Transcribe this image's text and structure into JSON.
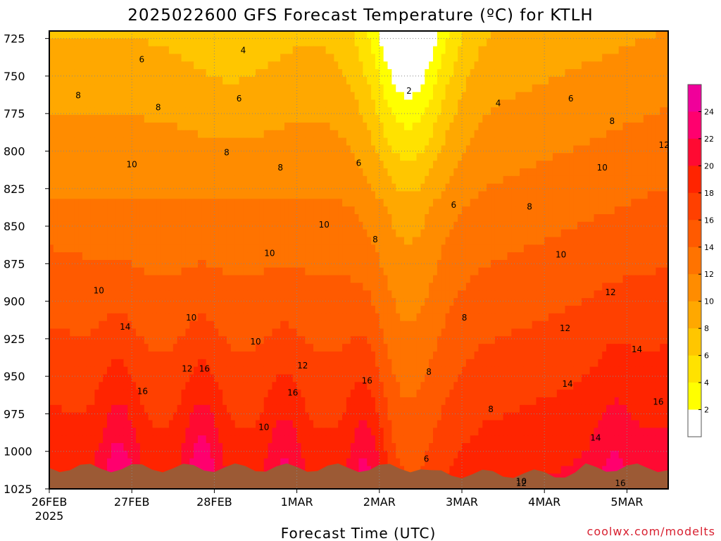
{
  "chart_data": {
    "type": "heatmap",
    "title": "2025022600 GFS Forecast Temperature (ºC) for KTLH",
    "xlabel": "Forecast Time (UTC)",
    "ylabel": "",
    "credit": "coolwx.com/modelts",
    "year_label": "2025",
    "y_ticks": [
      725,
      750,
      775,
      800,
      825,
      850,
      875,
      900,
      925,
      950,
      975,
      1000,
      1025
    ],
    "ylim": [
      720,
      1025
    ],
    "y_unit": "hPa",
    "y_inverted": true,
    "x_ticks": [
      "26FEB",
      "27FEB",
      "28FEB",
      "1MAR",
      "2MAR",
      "3MAR",
      "4MAR",
      "5MAR"
    ],
    "xlim_days": [
      0,
      7.5
    ],
    "colorbar": {
      "ticks": [
        2,
        4,
        6,
        8,
        10,
        12,
        14,
        16,
        18,
        20,
        22,
        24
      ],
      "bands": [
        {
          "range": "<2",
          "color": "#ffffff"
        },
        {
          "range": "2-4",
          "color": "#ffff00"
        },
        {
          "range": "4-6",
          "color": "#ffe200"
        },
        {
          "range": "6-8",
          "color": "#ffc600"
        },
        {
          "range": "8-10",
          "color": "#ffa800"
        },
        {
          "range": "10-12",
          "color": "#ff8c00"
        },
        {
          "range": "12-14",
          "color": "#ff7300"
        },
        {
          "range": "14-16",
          "color": "#ff5a00"
        },
        {
          "range": "16-18",
          "color": "#ff4000"
        },
        {
          "range": "18-20",
          "color": "#ff2400"
        },
        {
          "range": "20-22",
          "color": "#ff0a32"
        },
        {
          "range": "22-24",
          "color": "#ff006e"
        },
        {
          "range": ">24",
          "color": "#f0009a"
        }
      ]
    },
    "ground_color": "#9c5a35",
    "surface_pressure_hPa": 1011,
    "contour_labels": [
      {
        "value": "6",
        "day": 1.12,
        "p": 739
      },
      {
        "value": "4",
        "day": 2.35,
        "p": 733
      },
      {
        "value": "2",
        "day": 4.36,
        "p": 760
      },
      {
        "value": "4",
        "day": 5.44,
        "p": 768
      },
      {
        "value": "6",
        "day": 6.32,
        "p": 765
      },
      {
        "value": "8",
        "day": 6.82,
        "p": 780
      },
      {
        "value": "12",
        "day": 7.45,
        "p": 796
      },
      {
        "value": "8",
        "day": 0.35,
        "p": 763
      },
      {
        "value": "8",
        "day": 1.32,
        "p": 771
      },
      {
        "value": "6",
        "day": 2.3,
        "p": 765
      },
      {
        "value": "10",
        "day": 1.0,
        "p": 809
      },
      {
        "value": "8",
        "day": 2.15,
        "p": 801
      },
      {
        "value": "8",
        "day": 2.8,
        "p": 811
      },
      {
        "value": "6",
        "day": 3.75,
        "p": 808
      },
      {
        "value": "10",
        "day": 6.7,
        "p": 811
      },
      {
        "value": "6",
        "day": 4.9,
        "p": 836
      },
      {
        "value": "8",
        "day": 5.82,
        "p": 837
      },
      {
        "value": "10",
        "day": 3.33,
        "p": 849
      },
      {
        "value": "8",
        "day": 3.95,
        "p": 859
      },
      {
        "value": "10",
        "day": 2.67,
        "p": 868
      },
      {
        "value": "10",
        "day": 6.2,
        "p": 869
      },
      {
        "value": "10",
        "day": 0.6,
        "p": 893
      },
      {
        "value": "12",
        "day": 6.8,
        "p": 894
      },
      {
        "value": "10",
        "day": 1.72,
        "p": 911
      },
      {
        "value": "8",
        "day": 5.03,
        "p": 911
      },
      {
        "value": "14",
        "day": 0.92,
        "p": 917
      },
      {
        "value": "12",
        "day": 6.25,
        "p": 918
      },
      {
        "value": "10",
        "day": 2.5,
        "p": 927
      },
      {
        "value": "14",
        "day": 7.12,
        "p": 932
      },
      {
        "value": "12",
        "day": 1.67,
        "p": 945
      },
      {
        "value": "16",
        "day": 1.88,
        "p": 945
      },
      {
        "value": "12",
        "day": 3.07,
        "p": 943
      },
      {
        "value": "8",
        "day": 4.6,
        "p": 947
      },
      {
        "value": "16",
        "day": 3.85,
        "p": 953
      },
      {
        "value": "14",
        "day": 6.28,
        "p": 955
      },
      {
        "value": "16",
        "day": 1.13,
        "p": 960
      },
      {
        "value": "16",
        "day": 2.95,
        "p": 961
      },
      {
        "value": "16",
        "day": 7.38,
        "p": 967
      },
      {
        "value": "10",
        "day": 2.6,
        "p": 984
      },
      {
        "value": "8",
        "day": 5.35,
        "p": 972
      },
      {
        "value": "14",
        "day": 6.62,
        "p": 991
      },
      {
        "value": "6",
        "day": 4.57,
        "p": 1005
      },
      {
        "value": "10",
        "day": 5.72,
        "p": 1020
      },
      {
        "value": "16",
        "day": 6.92,
        "p": 1036
      },
      {
        "value": "12",
        "day": 5.72,
        "p": 1042
      }
    ]
  }
}
